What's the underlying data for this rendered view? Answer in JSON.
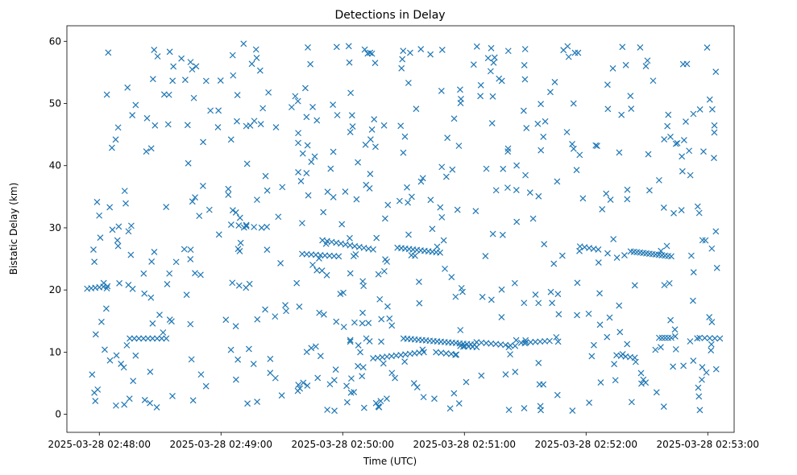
{
  "chart_data": {
    "type": "scatter",
    "title": "Detections in Delay",
    "xlabel": "Time (UTC)",
    "ylabel": "Bistatic Delay (km)",
    "marker": "x",
    "color": "#1f77b4",
    "x_unit": "seconds after 2025-03-28 02:48:00 UTC",
    "xlim": [
      -16,
      313
    ],
    "ylim": [
      -2.9,
      62.5
    ],
    "xticks": [
      {
        "value": 0,
        "label": "2025-03-28 02:48:00"
      },
      {
        "value": 60,
        "label": "2025-03-28 02:49:00"
      },
      {
        "value": 120,
        "label": "2025-03-28 02:50:00"
      },
      {
        "value": 180,
        "label": "2025-03-28 02:51:00"
      },
      {
        "value": 240,
        "label": "2025-03-28 02:52:00"
      },
      {
        "value": 300,
        "label": "2025-03-28 02:53:00"
      }
    ],
    "yticks": [
      {
        "value": 0,
        "label": "0"
      },
      {
        "value": 10,
        "label": "10"
      },
      {
        "value": 20,
        "label": "20"
      },
      {
        "value": 30,
        "label": "30"
      },
      {
        "value": 40,
        "label": "40"
      },
      {
        "value": 50,
        "label": "50"
      },
      {
        "value": 60,
        "label": "60"
      }
    ],
    "series": [
      {
        "name": "Detections",
        "tracks": [
          {
            "x_start": -6,
            "x_end": 4,
            "y_start": 20.2,
            "y_end": 20.6,
            "count": 6
          },
          {
            "x_start": 15,
            "x_end": 33,
            "y_start": 12.2,
            "y_end": 12.2,
            "count": 9
          },
          {
            "x_start": 65,
            "x_end": 80,
            "y_start": 30.5,
            "y_end": 30.0,
            "count": 5
          },
          {
            "x_start": 110,
            "x_end": 135,
            "y_start": 28.0,
            "y_end": 26.5,
            "count": 12
          },
          {
            "x_start": 100,
            "x_end": 118,
            "y_start": 25.8,
            "y_end": 25.4,
            "count": 9
          },
          {
            "x_start": 147,
            "x_end": 168,
            "y_start": 26.8,
            "y_end": 26.0,
            "count": 12
          },
          {
            "x_start": 150,
            "x_end": 185,
            "y_start": 12.2,
            "y_end": 11.2,
            "count": 20
          },
          {
            "x_start": 135,
            "x_end": 160,
            "y_start": 9.0,
            "y_end": 10.0,
            "count": 12
          },
          {
            "x_start": 166,
            "x_end": 176,
            "y_start": 10.0,
            "y_end": 9.6,
            "count": 5
          },
          {
            "x_start": 178,
            "x_end": 186,
            "y_start": 11.0,
            "y_end": 10.8,
            "count": 5
          },
          {
            "x_start": 186,
            "x_end": 205,
            "y_start": 11.6,
            "y_end": 11.0,
            "count": 9
          },
          {
            "x_start": 208,
            "x_end": 222,
            "y_start": 11.5,
            "y_end": 11.8,
            "count": 7
          },
          {
            "x_start": 237,
            "x_end": 246,
            "y_start": 27.0,
            "y_end": 26.5,
            "count": 5
          },
          {
            "x_start": 262,
            "x_end": 282,
            "y_start": 26.2,
            "y_end": 25.4,
            "count": 14
          },
          {
            "x_start": 276,
            "x_end": 282,
            "y_start": 12.3,
            "y_end": 12.3,
            "count": 5
          },
          {
            "x_start": 296,
            "x_end": 306,
            "y_start": 12.3,
            "y_end": 12.2,
            "count": 5
          },
          {
            "x_start": 255,
            "x_end": 264,
            "y_start": 9.5,
            "y_end": 9.1,
            "count": 5
          }
        ],
        "background": {
          "x_min": -4,
          "x_max": 305,
          "y_min": 0.5,
          "y_max": 59.7,
          "count": 560,
          "seed": 20250328
        }
      }
    ]
  }
}
